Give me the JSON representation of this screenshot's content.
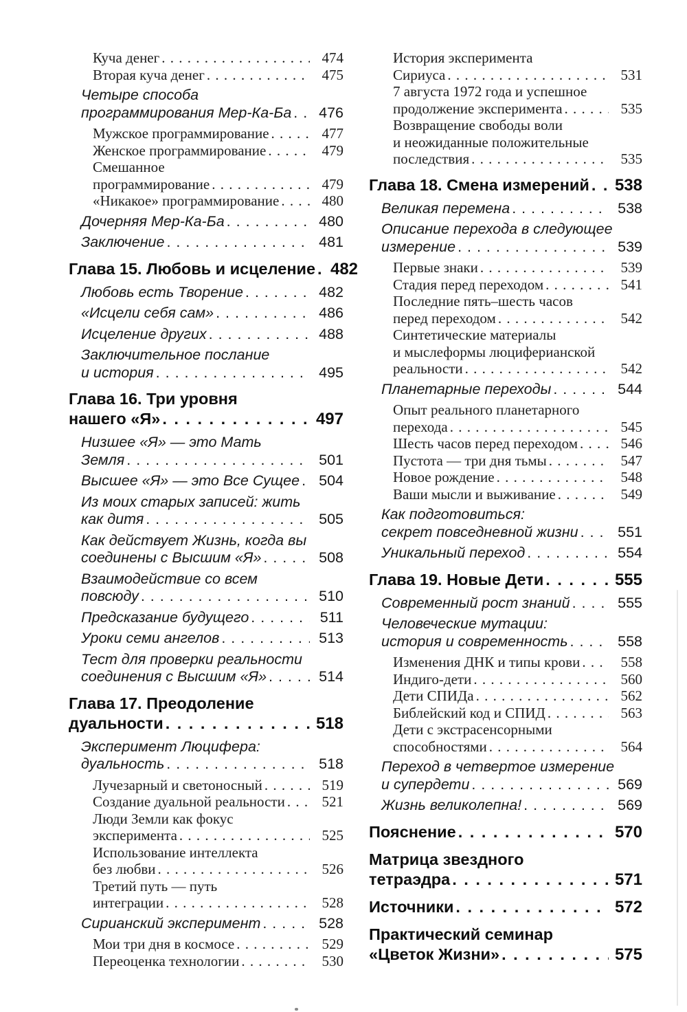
{
  "page": {
    "kind": "book-table-of-contents",
    "language": "ru",
    "text_color": "#1c1c1c",
    "background_color": "#ffffff"
  },
  "columns": [
    {
      "entries": [
        {
          "level": "subsub",
          "lines": [
            "Куча денег"
          ],
          "page": "474"
        },
        {
          "level": "subsub",
          "lines": [
            "Вторая куча денег"
          ],
          "page": "475"
        },
        {
          "level": "sub",
          "lines": [
            "Четыре способа",
            "программирования Мер-Ка-Ба"
          ],
          "page": "476"
        },
        {
          "level": "subsub",
          "lines": [
            "Мужское программирование"
          ],
          "page": "477"
        },
        {
          "level": "subsub",
          "lines": [
            "Женское программирование"
          ],
          "page": "479"
        },
        {
          "level": "subsub",
          "lines": [
            "Смешанное",
            "программирование"
          ],
          "page": "479"
        },
        {
          "level": "subsub",
          "lines": [
            "«Никакое» программирование"
          ],
          "page": "480"
        },
        {
          "level": "sub",
          "lines": [
            "Дочерняя Мер-Ка-Ба"
          ],
          "page": "480"
        },
        {
          "level": "sub",
          "lines": [
            "Заключение"
          ],
          "page": "481"
        },
        {
          "level": "chapter",
          "lines": [
            "Глава 15. Любовь и исцеление"
          ],
          "page": "482"
        },
        {
          "level": "sub",
          "lines": [
            "Любовь есть Творение"
          ],
          "page": "482"
        },
        {
          "level": "sub",
          "lines": [
            "«Исцели себя сам»"
          ],
          "page": "486"
        },
        {
          "level": "sub",
          "lines": [
            "Исцеление других"
          ],
          "page": "488"
        },
        {
          "level": "sub",
          "lines": [
            "Заключительное послание",
            "и история"
          ],
          "page": "495"
        },
        {
          "level": "chapter",
          "lines": [
            "Глава 16. Три уровня",
            "нашего «Я»"
          ],
          "page": "497"
        },
        {
          "level": "sub",
          "lines": [
            "Низшее «Я» — это Мать",
            "Земля"
          ],
          "page": "501"
        },
        {
          "level": "sub",
          "lines": [
            "Высшее «Я» — это Все Сущее"
          ],
          "page": "504"
        },
        {
          "level": "sub",
          "lines": [
            "Из моих старых записей: жить",
            "как дитя"
          ],
          "page": "505"
        },
        {
          "level": "sub",
          "lines": [
            "Как действует Жизнь, когда вы",
            "соединены с Высшим «Я»"
          ],
          "page": "508"
        },
        {
          "level": "sub",
          "lines": [
            "Взаимодействие со всем",
            "повсюду"
          ],
          "page": "510"
        },
        {
          "level": "sub",
          "lines": [
            "Предсказание будущего"
          ],
          "page": "511"
        },
        {
          "level": "sub",
          "lines": [
            "Уроки семи ангелов"
          ],
          "page": "513"
        },
        {
          "level": "sub",
          "lines": [
            "Тест для проверки реальности",
            "соединения с Высшим «Я»"
          ],
          "page": "514"
        },
        {
          "level": "chapter",
          "lines": [
            "Глава 17. Преодоление",
            "дуальности"
          ],
          "page": "518"
        },
        {
          "level": "sub",
          "lines": [
            "Эксперимент Люцифера:",
            "дуальность"
          ],
          "page": "518"
        },
        {
          "level": "subsub",
          "lines": [
            "Лучезарный и светоносный"
          ],
          "page": "519"
        },
        {
          "level": "subsub",
          "lines": [
            "Создание дуальной реальности"
          ],
          "page": "521"
        },
        {
          "level": "subsub",
          "lines": [
            "Люди Земли как фокус",
            "эксперимента"
          ],
          "page": "525"
        },
        {
          "level": "subsub",
          "lines": [
            "Использование интеллекта",
            "без любви"
          ],
          "page": "526"
        },
        {
          "level": "subsub",
          "lines": [
            "Третий путь — путь",
            "интеграции"
          ],
          "page": "528"
        },
        {
          "level": "sub",
          "lines": [
            "Сирианский эксперимент"
          ],
          "page": "528"
        },
        {
          "level": "subsub",
          "lines": [
            "Мои три дня в космосе"
          ],
          "page": "529"
        },
        {
          "level": "subsub",
          "lines": [
            "Переоценка технологии"
          ],
          "page": "530"
        }
      ]
    },
    {
      "entries": [
        {
          "level": "subsub",
          "lines": [
            "История эксперимента",
            "Сириуса"
          ],
          "page": "531"
        },
        {
          "level": "subsub",
          "lines": [
            "7 августа 1972 года и успешное",
            "продолжение эксперимента"
          ],
          "page": "535"
        },
        {
          "level": "subsub",
          "lines": [
            "Возвращение свободы воли",
            "и неожиданные положительные",
            "последствия"
          ],
          "page": "535"
        },
        {
          "level": "chapter",
          "lines": [
            "Глава 18. Смена измерений"
          ],
          "page": "538"
        },
        {
          "level": "sub",
          "lines": [
            "Великая перемена"
          ],
          "page": "538"
        },
        {
          "level": "sub",
          "lines": [
            "Описание перехода в следующее",
            "измерение"
          ],
          "page": "539"
        },
        {
          "level": "subsub",
          "lines": [
            "Первые знаки"
          ],
          "page": "539"
        },
        {
          "level": "subsub",
          "lines": [
            "Стадия перед переходом"
          ],
          "page": "541"
        },
        {
          "level": "subsub",
          "lines": [
            "Последние пять–шесть часов",
            "перед переходом"
          ],
          "page": "542"
        },
        {
          "level": "subsub",
          "lines": [
            "Синтетические материалы",
            "и мыслеформы люциферианской",
            "реальности"
          ],
          "page": "542"
        },
        {
          "level": "sub",
          "lines": [
            "Планетарные переходы"
          ],
          "page": "544"
        },
        {
          "level": "subsub",
          "lines": [
            "Опыт реального планетарного",
            "перехода"
          ],
          "page": "545"
        },
        {
          "level": "subsub",
          "lines": [
            "Шесть часов перед переходом"
          ],
          "page": "546"
        },
        {
          "level": "subsub",
          "lines": [
            "Пустота — три дня тьмы"
          ],
          "page": "547"
        },
        {
          "level": "subsub",
          "lines": [
            "Новое рождение"
          ],
          "page": "548"
        },
        {
          "level": "subsub",
          "lines": [
            "Ваши мысли и выживание"
          ],
          "page": "549"
        },
        {
          "level": "sub",
          "lines": [
            "Как подготовиться:",
            "секрет повседневной жизни"
          ],
          "page": "551"
        },
        {
          "level": "sub",
          "lines": [
            "Уникальный переход"
          ],
          "page": "554"
        },
        {
          "level": "chapter",
          "lines": [
            "Глава 19. Новые Дети"
          ],
          "page": "555"
        },
        {
          "level": "sub",
          "lines": [
            "Современный рост знаний"
          ],
          "page": "555"
        },
        {
          "level": "sub",
          "lines": [
            "Человеческие мутации:",
            "история и современность"
          ],
          "page": "558"
        },
        {
          "level": "subsub",
          "lines": [
            "Изменения ДНК и типы крови"
          ],
          "page": "558"
        },
        {
          "level": "subsub",
          "lines": [
            "Индиго-дети"
          ],
          "page": "560"
        },
        {
          "level": "subsub",
          "lines": [
            "Дети СПИДа"
          ],
          "page": "562"
        },
        {
          "level": "subsub",
          "lines": [
            "Библейский код и СПИД"
          ],
          "page": "563"
        },
        {
          "level": "subsub",
          "lines": [
            "Дети с экстрасенсорными",
            "способностями"
          ],
          "page": "564"
        },
        {
          "level": "sub",
          "lines": [
            "Переход в четвертое измерение",
            "и супердети"
          ],
          "page": "569"
        },
        {
          "level": "sub",
          "lines": [
            "Жизнь великолепна!"
          ],
          "page": "569"
        },
        {
          "level": "chapter",
          "lines": [
            "Пояснение"
          ],
          "page": "570"
        },
        {
          "level": "chapter",
          "lines": [
            "Матрица звездного",
            "тетраэдра"
          ],
          "page": "571"
        },
        {
          "level": "chapter",
          "lines": [
            "Источники"
          ],
          "page": "572"
        },
        {
          "level": "chapter",
          "lines": [
            "Практический семинар",
            "«Цветок Жизни»"
          ],
          "page": "575"
        }
      ]
    }
  ]
}
